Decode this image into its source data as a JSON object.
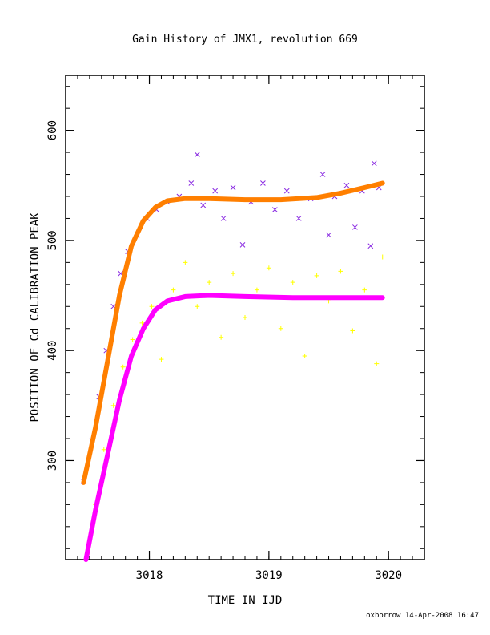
{
  "chart_data": {
    "type": "scatter",
    "title": "Gain History of JMX1, revolution 669",
    "xlabel": "TIME IN IJD",
    "ylabel": "POSITION OF Cd CALIBRATION PEAK",
    "xlim": [
      3017.3,
      3020.3
    ],
    "ylim": [
      210,
      650
    ],
    "x_ticks": [
      3018,
      3019,
      3020
    ],
    "y_ticks": [
      300,
      400,
      500,
      600
    ],
    "x_minor_step": 0.1,
    "y_minor_step": 20,
    "grid": false,
    "legend": "none",
    "footer": "oxborrow 14-Apr-2008 16:47",
    "series": [
      {
        "kind": "scatter-x",
        "color": "#8a2be2",
        "points": [
          [
            3017.45,
            281
          ],
          [
            3017.52,
            318
          ],
          [
            3017.58,
            358
          ],
          [
            3017.64,
            400
          ],
          [
            3017.7,
            440
          ],
          [
            3017.76,
            470
          ],
          [
            3017.82,
            490
          ],
          [
            3017.9,
            505
          ],
          [
            3017.98,
            520
          ],
          [
            3018.06,
            528
          ],
          [
            3018.15,
            535
          ],
          [
            3018.25,
            540
          ],
          [
            3018.35,
            552
          ],
          [
            3018.4,
            578
          ],
          [
            3018.45,
            532
          ],
          [
            3018.55,
            545
          ],
          [
            3018.62,
            520
          ],
          [
            3018.7,
            548
          ],
          [
            3018.78,
            496
          ],
          [
            3018.85,
            535
          ],
          [
            3018.95,
            552
          ],
          [
            3019.05,
            528
          ],
          [
            3019.15,
            545
          ],
          [
            3019.25,
            520
          ],
          [
            3019.35,
            538
          ],
          [
            3019.45,
            560
          ],
          [
            3019.5,
            505
          ],
          [
            3019.55,
            540
          ],
          [
            3019.65,
            550
          ],
          [
            3019.72,
            512
          ],
          [
            3019.78,
            545
          ],
          [
            3019.85,
            495
          ],
          [
            3019.88,
            570
          ],
          [
            3019.92,
            548
          ]
        ]
      },
      {
        "kind": "fit",
        "color": "#ff7f00",
        "points": [
          [
            3017.45,
            280
          ],
          [
            3017.55,
            330
          ],
          [
            3017.65,
            390
          ],
          [
            3017.75,
            450
          ],
          [
            3017.85,
            495
          ],
          [
            3017.95,
            518
          ],
          [
            3018.05,
            530
          ],
          [
            3018.15,
            536
          ],
          [
            3018.3,
            538
          ],
          [
            3018.5,
            538
          ],
          [
            3018.8,
            537
          ],
          [
            3019.1,
            537
          ],
          [
            3019.4,
            539
          ],
          [
            3019.6,
            543
          ],
          [
            3019.8,
            548
          ],
          [
            3019.95,
            552
          ]
        ]
      },
      {
        "kind": "scatter-plus",
        "color": "#ffff00",
        "points": [
          [
            3017.48,
            215
          ],
          [
            3017.55,
            260
          ],
          [
            3017.62,
            310
          ],
          [
            3017.7,
            350
          ],
          [
            3017.78,
            385
          ],
          [
            3017.86,
            410
          ],
          [
            3017.94,
            425
          ],
          [
            3018.02,
            440
          ],
          [
            3018.1,
            392
          ],
          [
            3018.2,
            455
          ],
          [
            3018.3,
            480
          ],
          [
            3018.4,
            440
          ],
          [
            3018.5,
            462
          ],
          [
            3018.6,
            412
          ],
          [
            3018.7,
            470
          ],
          [
            3018.8,
            430
          ],
          [
            3018.9,
            455
          ],
          [
            3019.0,
            475
          ],
          [
            3019.1,
            420
          ],
          [
            3019.2,
            462
          ],
          [
            3019.3,
            395
          ],
          [
            3019.4,
            468
          ],
          [
            3019.5,
            445
          ],
          [
            3019.6,
            472
          ],
          [
            3019.7,
            418
          ],
          [
            3019.8,
            455
          ],
          [
            3019.9,
            388
          ],
          [
            3019.95,
            485
          ]
        ]
      },
      {
        "kind": "fit",
        "color": "#ff00ff",
        "points": [
          [
            3017.47,
            210
          ],
          [
            3017.55,
            255
          ],
          [
            3017.65,
            305
          ],
          [
            3017.75,
            355
          ],
          [
            3017.85,
            395
          ],
          [
            3017.95,
            420
          ],
          [
            3018.05,
            437
          ],
          [
            3018.15,
            445
          ],
          [
            3018.3,
            449
          ],
          [
            3018.5,
            450
          ],
          [
            3018.8,
            449
          ],
          [
            3019.2,
            448
          ],
          [
            3019.6,
            448
          ],
          [
            3019.95,
            448
          ]
        ]
      }
    ]
  }
}
